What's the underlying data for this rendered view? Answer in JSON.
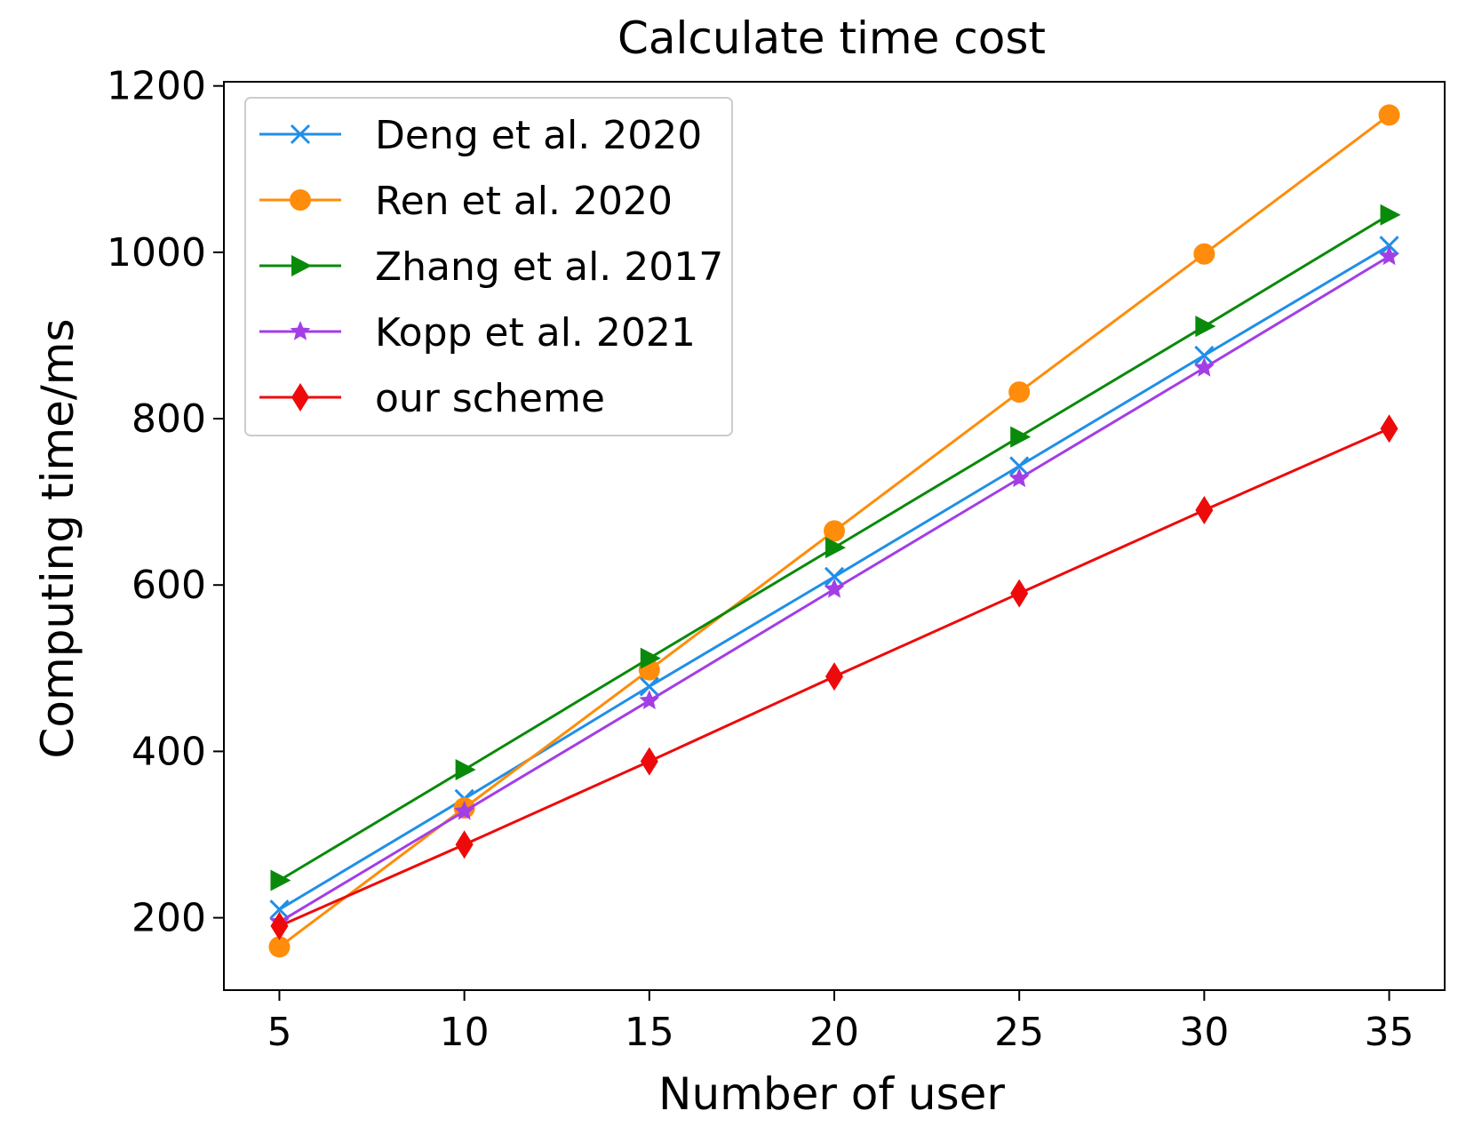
{
  "chart_data": {
    "type": "line",
    "title": "Calculate time cost",
    "xlabel": "Number of user",
    "ylabel": "Computing time/ms",
    "x": [
      5,
      10,
      15,
      20,
      25,
      30,
      35
    ],
    "xticks": [
      5,
      10,
      15,
      20,
      25,
      30,
      35
    ],
    "yticks": [
      200,
      400,
      600,
      800,
      1000,
      1200
    ],
    "xlim": [
      3.5,
      36.5
    ],
    "ylim": [
      113,
      1205
    ],
    "grid": false,
    "legend_position": "upper-left",
    "series": [
      {
        "name": "Deng et al. 2020",
        "color": "#1f8fe8",
        "marker": "x",
        "values": [
          210,
          343,
          478,
          610,
          743,
          876,
          1008
        ]
      },
      {
        "name": "Ren et al. 2020",
        "color": "#ff8c0a",
        "marker": "circle",
        "values": [
          165,
          332,
          498,
          665,
          832,
          998,
          1165
        ]
      },
      {
        "name": "Zhang et al. 2017",
        "color": "#0a8a0a",
        "marker": "triangle-right",
        "values": [
          245,
          378,
          512,
          645,
          778,
          911,
          1045
        ]
      },
      {
        "name": "Kopp et al. 2021",
        "color": "#a33ee6",
        "marker": "star",
        "values": [
          195,
          328,
          461,
          595,
          728,
          861,
          995
        ]
      },
      {
        "name": "our scheme",
        "color": "#ee0a0a",
        "marker": "diamond",
        "values": [
          190,
          288,
          388,
          490,
          590,
          690,
          788
        ]
      }
    ]
  }
}
